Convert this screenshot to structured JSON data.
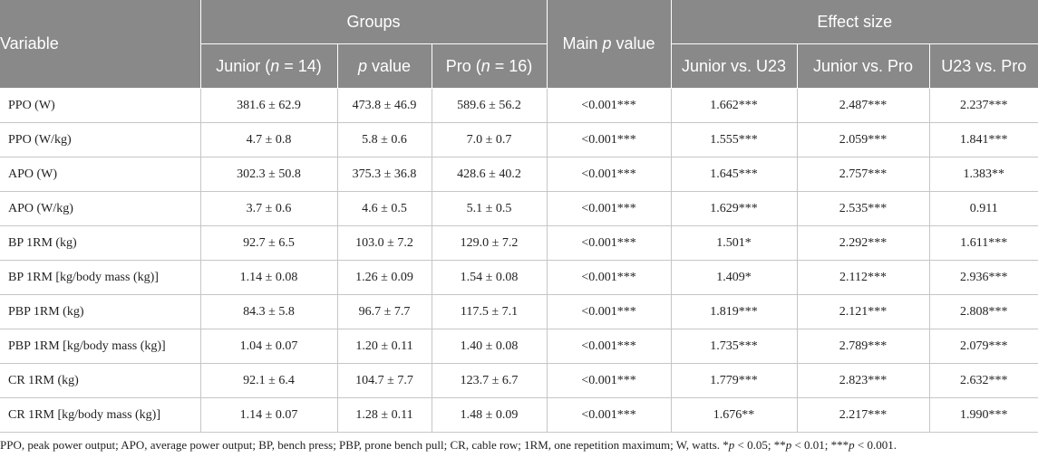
{
  "header": {
    "variable": "Variable",
    "groups": "Groups",
    "main_p": {
      "pre": "Main ",
      "italic": "p",
      "post": " value"
    },
    "effect_size": "Effect size",
    "junior": {
      "pre": "Junior (",
      "italic": "n",
      "post": " = 14)"
    },
    "p_value": {
      "italic": "p",
      "post": " value"
    },
    "pro": {
      "pre": "Pro (",
      "italic": "n",
      "post": " = 16)"
    },
    "junior_vs_u23": "Junior vs. U23",
    "junior_vs_pro": "Junior vs. Pro",
    "u23_vs_pro": "U23 vs. Pro"
  },
  "rows": [
    [
      "PPO (W)",
      "381.6 ± 62.9",
      "473.8 ± 46.9",
      "589.6 ± 56.2",
      "<0.001***",
      "1.662***",
      "2.487***",
      "2.237***"
    ],
    [
      "PPO (W/kg)",
      "4.7 ± 0.8",
      "5.8 ± 0.6",
      "7.0 ± 0.7",
      "<0.001***",
      "1.555***",
      "2.059***",
      "1.841***"
    ],
    [
      "APO (W)",
      "302.3 ± 50.8",
      "375.3 ± 36.8",
      "428.6 ± 40.2",
      "<0.001***",
      "1.645***",
      "2.757***",
      "1.383**"
    ],
    [
      "APO (W/kg)",
      "3.7 ± 0.6",
      "4.6 ± 0.5",
      "5.1 ± 0.5",
      "<0.001***",
      "1.629***",
      "2.535***",
      "0.911"
    ],
    [
      "BP 1RM (kg)",
      "92.7 ± 6.5",
      "103.0 ± 7.2",
      "129.0 ± 7.2",
      "<0.001***",
      "1.501*",
      "2.292***",
      "1.611***"
    ],
    [
      "BP 1RM [kg/body mass (kg)]",
      "1.14 ± 0.08",
      "1.26 ± 0.09",
      "1.54 ± 0.08",
      "<0.001***",
      "1.409*",
      "2.112***",
      "2.936***"
    ],
    [
      "PBP 1RM (kg)",
      "84.3 ± 5.8",
      "96.7 ± 7.7",
      "117.5 ± 7.1",
      "<0.001***",
      "1.819***",
      "2.121***",
      "2.808***"
    ],
    [
      "PBP 1RM [kg/body mass (kg)]",
      "1.04 ± 0.07",
      "1.20 ± 0.11",
      "1.40 ± 0.08",
      "<0.001***",
      "1.735***",
      "2.789***",
      "2.079***"
    ],
    [
      "CR 1RM (kg)",
      "92.1 ± 6.4",
      "104.7 ± 7.7",
      "123.7 ± 6.7",
      "<0.001***",
      "1.779***",
      "2.823***",
      "2.632***"
    ],
    [
      "CR 1RM [kg/body mass (kg)]",
      "1.14 ± 0.07",
      "1.28 ± 0.11",
      "1.48 ± 0.09",
      "<0.001***",
      "1.676**",
      "2.217***",
      "1.990***"
    ]
  ],
  "footnote": {
    "text": "PPO, peak power output; APO, average power output; BP, bench press; PBP, prone bench pull; CR, cable row; 1RM, one repetition maximum; W, watts. ",
    "s1": "*",
    "p1": "p",
    "v1": " < 0.05; ",
    "s2": "**",
    "p2": "p",
    "v2": " < 0.01; ",
    "s3": "***",
    "p3": "p",
    "v3": " < 0.001."
  }
}
